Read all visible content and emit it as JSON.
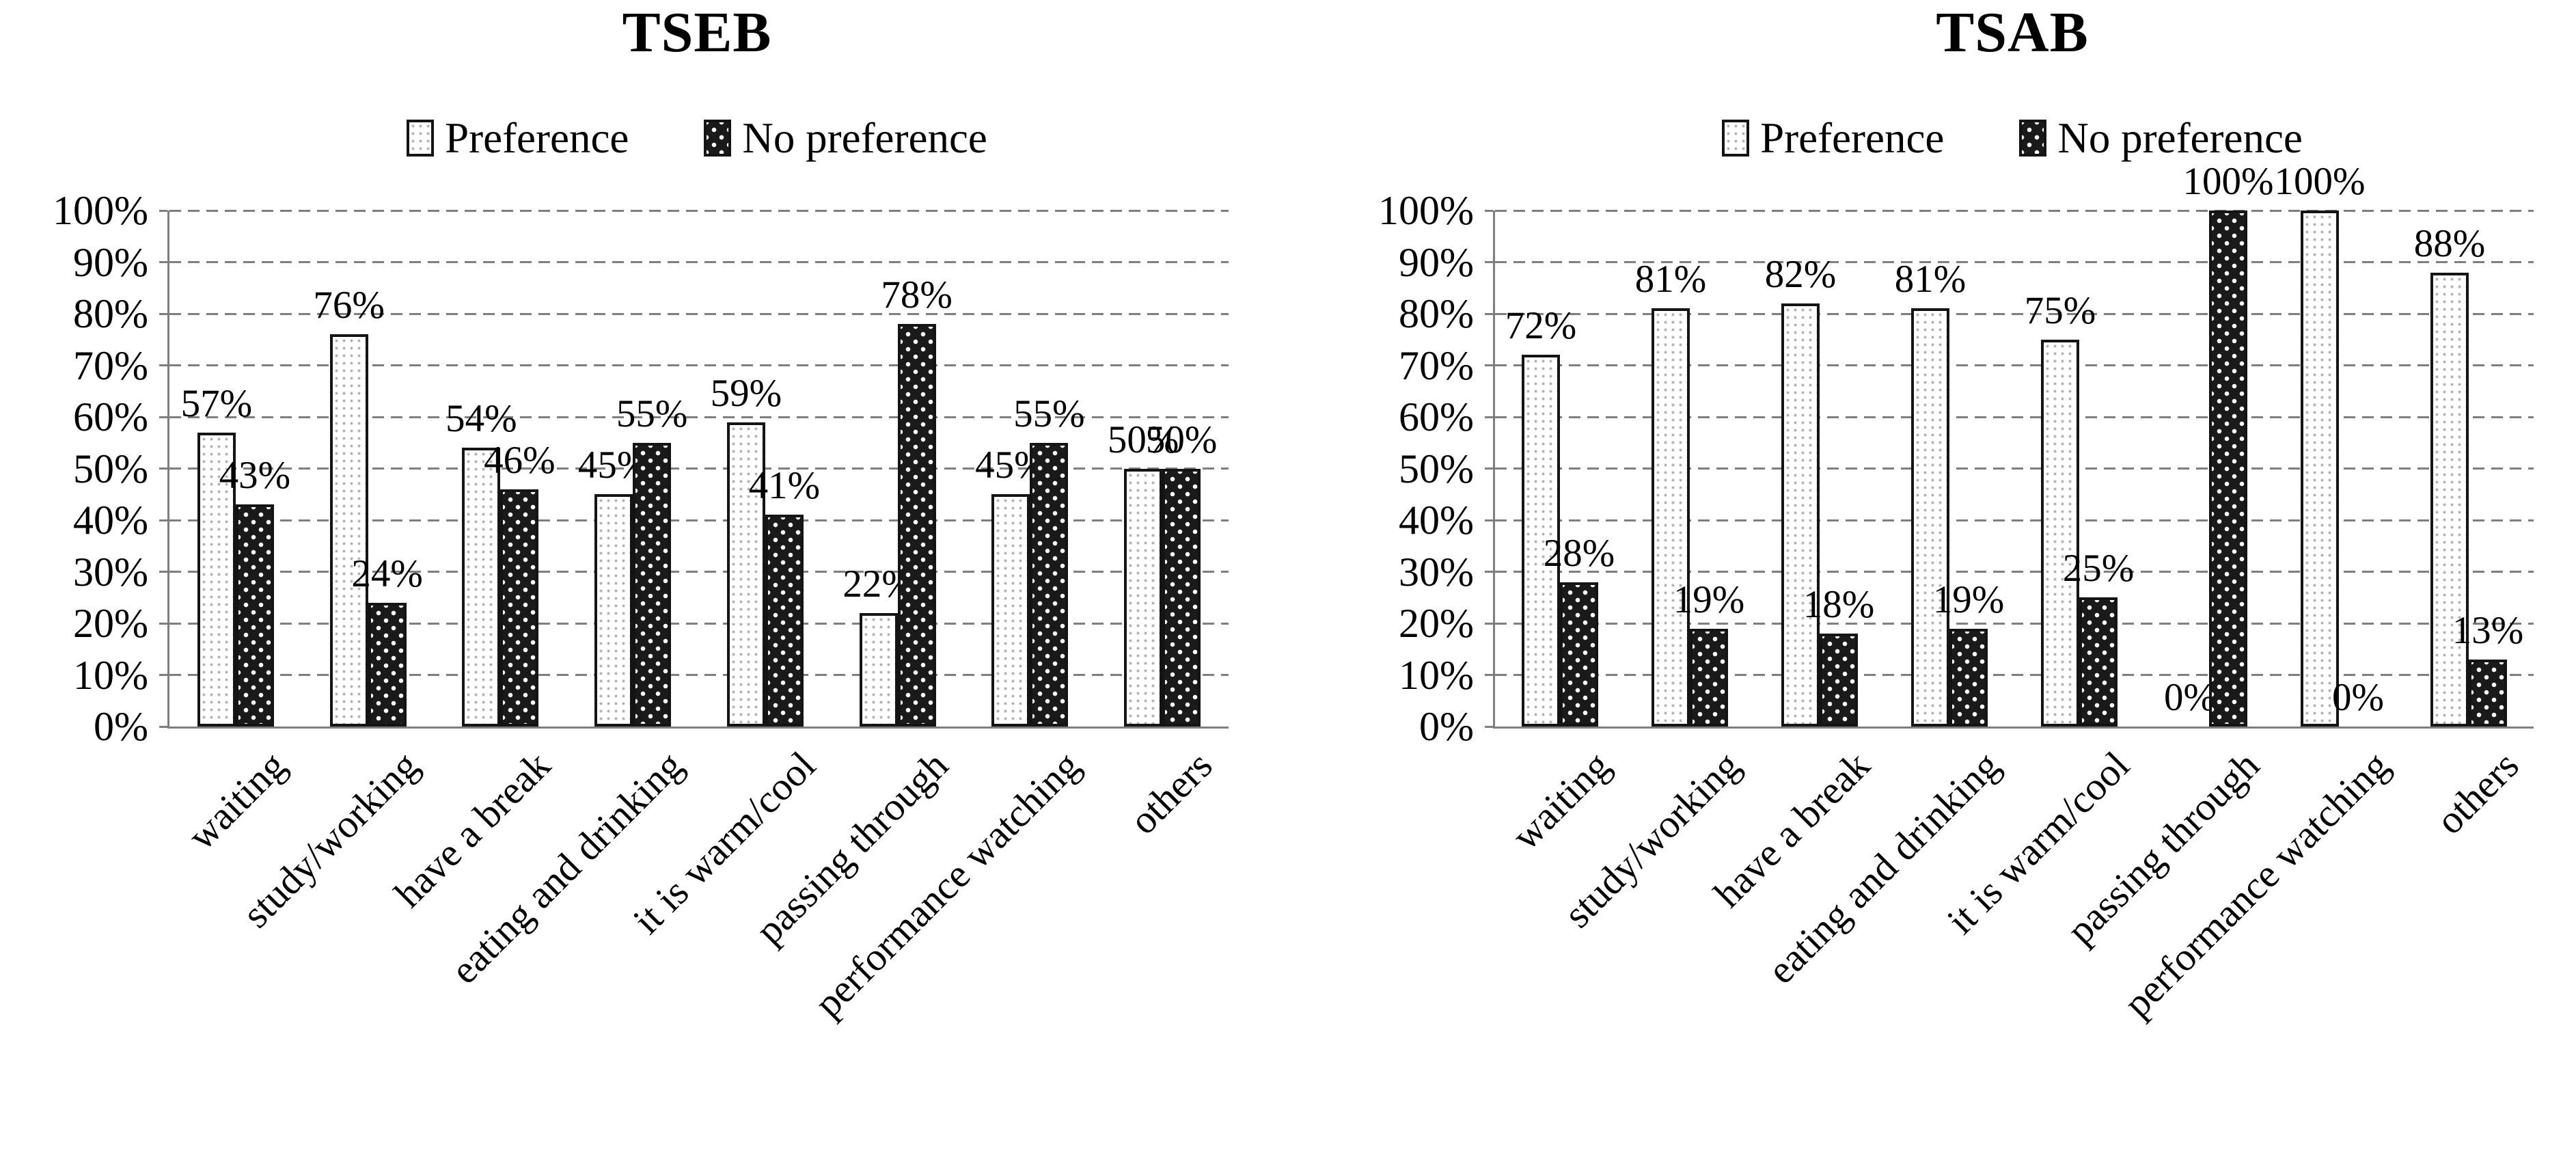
{
  "style": {
    "background": "#ffffff",
    "text_color": "#000000",
    "grid_color": "#7e7e7e",
    "axis_color": "#7e7e7e",
    "bar_border": "#141414",
    "preference_fill": "white with light gray dots",
    "no_preference_fill": "black with white dots"
  },
  "chart_data": [
    {
      "type": "bar",
      "title": "TSEB",
      "legend_position": "top",
      "grid": "dashed-horizontal",
      "categories": [
        "waiting",
        "study/working",
        "have a break",
        "eating and drinking",
        "it is warm/cool",
        "passing through",
        "performance watching",
        "others"
      ],
      "series": [
        {
          "name": "Preference",
          "pattern": "light-dots",
          "values": [
            57,
            76,
            54,
            45,
            59,
            22,
            45,
            50
          ],
          "labels": [
            "57%",
            "76%",
            "54%",
            "45%",
            "59%",
            "22%",
            "45%",
            "50%"
          ]
        },
        {
          "name": "No preference",
          "pattern": "dark-dots",
          "values": [
            43,
            24,
            46,
            55,
            41,
            78,
            55,
            50
          ],
          "labels": [
            "43%",
            "24%",
            "46%",
            "55%",
            "41%",
            "78%",
            "55%",
            "50%"
          ]
        }
      ],
      "y_axis": {
        "min": 0,
        "max": 100,
        "ticks": [
          "0%",
          "10%",
          "20%",
          "30%",
          "40%",
          "50%",
          "60%",
          "70%",
          "80%",
          "90%",
          "100%"
        ]
      }
    },
    {
      "type": "bar",
      "title": "TSAB",
      "legend_position": "top",
      "grid": "dashed-horizontal",
      "categories": [
        "waiting",
        "study/working",
        "have a break",
        "eating and drinking",
        "it is warm/cool",
        "passing through",
        "performance watching",
        "others"
      ],
      "series": [
        {
          "name": "Preference",
          "pattern": "light-dots",
          "values": [
            72,
            81,
            82,
            81,
            75,
            0,
            100,
            88
          ],
          "labels": [
            "72%",
            "81%",
            "82%",
            "81%",
            "75%",
            "0%",
            "100%",
            "88%"
          ]
        },
        {
          "name": "No preference",
          "pattern": "dark-dots",
          "values": [
            28,
            19,
            18,
            19,
            25,
            100,
            0,
            13
          ],
          "labels": [
            "28%",
            "19%",
            "18%",
            "19%",
            "25%",
            "100%",
            "0%",
            "13%"
          ]
        }
      ],
      "y_axis": {
        "min": 0,
        "max": 100,
        "ticks": [
          "0%",
          "10%",
          "20%",
          "30%",
          "40%",
          "50%",
          "60%",
          "70%",
          "80%",
          "90%",
          "100%"
        ]
      }
    }
  ]
}
